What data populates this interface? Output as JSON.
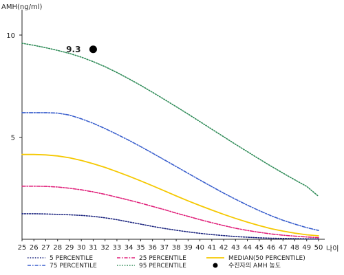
{
  "chart_data": {
    "type": "line",
    "ylabel": "AMH(ng/ml)",
    "xlabel": "나이",
    "x": [
      25,
      26,
      27,
      28,
      29,
      30,
      31,
      32,
      33,
      34,
      35,
      36,
      37,
      38,
      39,
      40,
      41,
      42,
      43,
      44,
      45,
      46,
      47,
      48,
      49,
      50
    ],
    "x_tick_labels": [
      "25",
      "26",
      "27",
      "28",
      "29",
      "30",
      "31",
      "32",
      "33",
      "34",
      "35",
      "36",
      "37",
      "38",
      "39",
      "40",
      "41",
      "42",
      "43",
      "44",
      "45",
      "46",
      "47",
      "48",
      "49",
      "50"
    ],
    "xlim": [
      25,
      50
    ],
    "ylim": [
      0,
      11
    ],
    "y_ticks": [
      5,
      10
    ],
    "y_tick_labels": [
      "5",
      "10"
    ],
    "grid": false,
    "legend_placement": "bottom",
    "series": [
      {
        "name": "5 PERCENTILE",
        "color": "#1a237e",
        "dash": "dotted",
        "values": [
          1.25,
          1.25,
          1.24,
          1.22,
          1.2,
          1.17,
          1.12,
          1.05,
          0.96,
          0.85,
          0.74,
          0.63,
          0.53,
          0.44,
          0.36,
          0.29,
          0.23,
          0.18,
          0.13,
          0.1,
          0.07,
          0.05,
          0.04,
          0.03,
          0.02,
          0.02
        ]
      },
      {
        "name": "25 PERCENTILE",
        "color": "#e0207a",
        "dash": "dashdot",
        "values": [
          2.6,
          2.6,
          2.59,
          2.56,
          2.5,
          2.42,
          2.32,
          2.2,
          2.06,
          1.92,
          1.77,
          1.61,
          1.45,
          1.28,
          1.12,
          0.96,
          0.81,
          0.67,
          0.54,
          0.43,
          0.34,
          0.26,
          0.2,
          0.15,
          0.11,
          0.08
        ]
      },
      {
        "name": "MEDIAN(50 PERCENTILE)",
        "color": "#f5c800",
        "dash": "solid",
        "values": [
          4.15,
          4.15,
          4.13,
          4.08,
          3.99,
          3.86,
          3.7,
          3.52,
          3.31,
          3.09,
          2.86,
          2.62,
          2.37,
          2.12,
          1.88,
          1.65,
          1.43,
          1.22,
          1.02,
          0.84,
          0.67,
          0.52,
          0.4,
          0.3,
          0.22,
          0.17
        ]
      },
      {
        "name": "75 PERCENTILE",
        "color": "#3a5fcd",
        "dash": "dashdot",
        "values": [
          6.2,
          6.2,
          6.2,
          6.18,
          6.08,
          5.9,
          5.68,
          5.42,
          5.14,
          4.85,
          4.54,
          4.22,
          3.89,
          3.56,
          3.23,
          2.9,
          2.58,
          2.26,
          1.96,
          1.67,
          1.4,
          1.15,
          0.93,
          0.74,
          0.57,
          0.43
        ]
      },
      {
        "name": "95 PERCENTILE",
        "color": "#2e8b57",
        "dash": "dotted",
        "values": [
          9.6,
          9.5,
          9.38,
          9.25,
          9.1,
          8.92,
          8.7,
          8.45,
          8.17,
          7.86,
          7.54,
          7.2,
          6.85,
          6.49,
          6.13,
          5.76,
          5.39,
          5.02,
          4.65,
          4.29,
          3.93,
          3.58,
          3.24,
          2.91,
          2.59,
          2.1
        ]
      }
    ],
    "marker": {
      "name": "수진자의 AMH 농도",
      "x": 31,
      "y": 9.3,
      "label": "9.3",
      "color": "#000000"
    }
  }
}
